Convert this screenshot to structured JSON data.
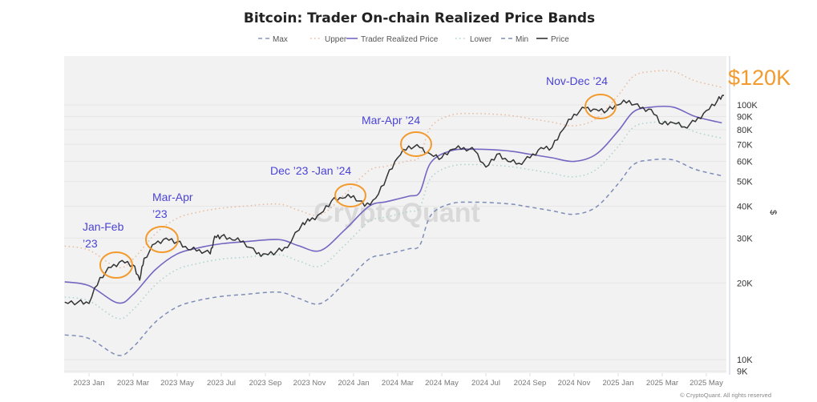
{
  "chart_data": {
    "type": "line",
    "title": "Bitcoin: Trader On-chain Realized Price Bands",
    "ylabel": "$",
    "yscale": "log",
    "ylim": [
      9000,
      150000
    ],
    "x_unit": "months since 2023 Jan",
    "xlim": [
      -1.1,
      28.8
    ],
    "x_ticks": [
      {
        "m": 0,
        "label": "2023 Jan"
      },
      {
        "m": 2,
        "label": "2023 Mar"
      },
      {
        "m": 4,
        "label": "2023 May"
      },
      {
        "m": 6,
        "label": "2023 Jul"
      },
      {
        "m": 8,
        "label": "2023 Sep"
      },
      {
        "m": 10,
        "label": "2023 Nov"
      },
      {
        "m": 12,
        "label": "2024 Jan"
      },
      {
        "m": 14,
        "label": "2024 Mar"
      },
      {
        "m": 16,
        "label": "2024 May"
      },
      {
        "m": 18,
        "label": "2024 Jul"
      },
      {
        "m": 20,
        "label": "2024 Sep"
      },
      {
        "m": 22,
        "label": "2024 Nov"
      },
      {
        "m": 24,
        "label": "2025 Jan"
      },
      {
        "m": 26,
        "label": "2025 Mar"
      },
      {
        "m": 28,
        "label": "2025 May"
      }
    ],
    "y_ticks": [
      {
        "v": 100000,
        "label": "100K"
      },
      {
        "v": 90000,
        "label": "90K"
      },
      {
        "v": 80000,
        "label": "80K"
      },
      {
        "v": 70000,
        "label": "70K"
      },
      {
        "v": 60000,
        "label": "60K"
      },
      {
        "v": 50000,
        "label": "50K"
      },
      {
        "v": 40000,
        "label": "40K"
      },
      {
        "v": 30000,
        "label": "30K"
      },
      {
        "v": 20000,
        "label": "20K"
      },
      {
        "v": 10000,
        "label": "10K"
      },
      {
        "v": 9000,
        "label": "9K"
      }
    ],
    "legend": [
      {
        "name": "Max",
        "style": "dashed",
        "color": "#8a97bd"
      },
      {
        "name": "Upper",
        "style": "dotted",
        "color": "#e9b99b"
      },
      {
        "name": "Trader Realized Price",
        "style": "solid",
        "color": "#7467c2"
      },
      {
        "name": "Lower",
        "style": "dotted",
        "color": "#a9d3cf"
      },
      {
        "name": "Min",
        "style": "dashed",
        "color": "#7e8db8"
      },
      {
        "name": "Price",
        "style": "solid",
        "color": "#333333"
      }
    ],
    "band_x": [
      -1.1,
      0,
      1.3,
      2,
      3,
      4,
      5,
      6,
      7,
      8.6,
      9.5,
      10.5,
      11.6,
      12.7,
      13.5,
      14.5,
      15,
      15.5,
      16.4,
      17.5,
      19,
      20,
      21,
      22,
      23,
      24,
      24.7,
      25.5,
      26.5,
      27.5,
      28.7
    ],
    "series": [
      {
        "name": "Upper",
        "values": [
          27.9,
          26.9,
          23.0,
          24.8,
          31.1,
          35.9,
          38.0,
          39.3,
          40.0,
          40.8,
          38.6,
          37.0,
          44.6,
          55.2,
          57.5,
          60.4,
          62.7,
          81.8,
          91.1,
          92.5,
          91.1,
          88.3,
          85.6,
          82.8,
          88.3,
          109,
          129.7,
          135.2,
          135.2,
          124.2,
          117.3
        ]
      },
      {
        "name": "Trader Realized Price",
        "values": [
          20.2,
          19.5,
          16.7,
          18,
          22.5,
          26,
          27.5,
          28.5,
          29,
          29.6,
          28,
          26.8,
          32.3,
          40,
          41.7,
          43.8,
          45.4,
          59.3,
          66,
          67,
          66,
          64,
          62,
          60,
          64,
          79,
          94,
          98,
          98,
          90,
          85
        ]
      },
      {
        "name": "Lower",
        "values": [
          17.6,
          17.0,
          14.5,
          15.7,
          19.6,
          22.6,
          23.9,
          24.8,
          25.2,
          25.8,
          24.4,
          23.3,
          28.1,
          34.8,
          36.3,
          38.1,
          39.5,
          51.6,
          57.4,
          58.3,
          57.4,
          55.7,
          53.9,
          52.2,
          55.7,
          68.7,
          81.8,
          85.3,
          85.3,
          78.3,
          74.0
        ]
      },
      {
        "name": "Min",
        "values": [
          12.5,
          12.1,
          10.4,
          11.2,
          14.0,
          16.1,
          17.1,
          17.7,
          18.0,
          18.4,
          17.4,
          16.6,
          20.0,
          24.8,
          25.9,
          27.2,
          28.1,
          36.8,
          40.9,
          41.5,
          40.9,
          39.7,
          38.4,
          37.2,
          39.7,
          49.0,
          58.3,
          60.8,
          60.8,
          55.8,
          52.7
        ]
      }
    ],
    "value_unit": "thousand USD",
    "price": {
      "x": [
        -1.1,
        -0.5,
        0,
        0.5,
        1,
        1.5,
        2,
        2.3,
        2.5,
        3,
        3.5,
        4,
        4.5,
        5,
        5.5,
        5.7,
        6,
        6.5,
        7,
        7.6,
        8,
        8.5,
        9,
        9.7,
        10,
        10.5,
        11,
        11.5,
        12,
        12.5,
        13,
        13.5,
        14,
        14.5,
        15,
        15.5,
        16,
        16.5,
        17,
        17.5,
        18,
        18.5,
        19,
        19.5,
        20,
        20.5,
        21,
        21.5,
        22,
        22.5,
        23,
        23.5,
        24,
        24.5,
        25,
        25.5,
        26,
        26.5,
        27,
        27.5,
        28,
        28.5,
        28.8
      ],
      "values": [
        16.8,
        16.8,
        16.6,
        21,
        23,
        24.5,
        23.5,
        20.5,
        25,
        28.5,
        30,
        29,
        27,
        27,
        26,
        30.5,
        30.5,
        29.5,
        29.2,
        26,
        26,
        26.5,
        27.5,
        34.5,
        35,
        37.5,
        42,
        43,
        44,
        40,
        43,
        52,
        62,
        69,
        68,
        64,
        62,
        67,
        68,
        66,
        57,
        64,
        60,
        59,
        62,
        68,
        68,
        80,
        92,
        97,
        96,
        95,
        100,
        104,
        97,
        96,
        84,
        85,
        82,
        86,
        95,
        104,
        109
      ]
    },
    "annotations": [
      {
        "lines": [
          "Jan-Feb",
          "’23"
        ]
      },
      {
        "lines": [
          "Mar-Apr",
          "’23"
        ]
      },
      {
        "lines": [
          "Dec ’23 -Jan ’24"
        ]
      },
      {
        "lines": [
          "Mar-Apr ’24"
        ]
      },
      {
        "lines": [
          "Nov-Dec ’24"
        ]
      }
    ],
    "callout": "$120K",
    "watermark": "CryptoQuant",
    "copyright": "© CryptoQuant. All rights reserved"
  }
}
